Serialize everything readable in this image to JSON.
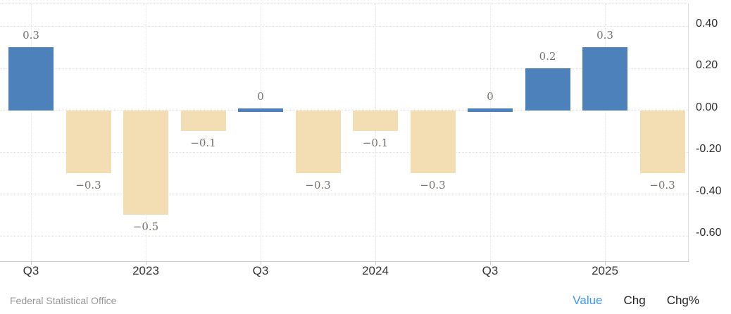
{
  "chart_data": {
    "type": "bar",
    "title": "",
    "series": [
      {
        "name": "Value",
        "values": [
          0.3,
          -0.3,
          -0.5,
          -0.1,
          0,
          -0.3,
          -0.1,
          -0.3,
          0,
          0.2,
          0.3,
          -0.3
        ],
        "value_labels": [
          "0.3",
          "−0.3",
          "−0.5",
          "−0.1",
          "0",
          "−0.3",
          "−0.1",
          "−0.3",
          "0",
          "0.2",
          "0.3",
          "−0.3"
        ]
      }
    ],
    "x_axis": {
      "ticks": [
        {
          "bar_index": 0,
          "label": "Q3"
        },
        {
          "bar_index": 2,
          "label": "2023"
        },
        {
          "bar_index": 4,
          "label": "Q3"
        },
        {
          "bar_index": 6,
          "label": "2024"
        },
        {
          "bar_index": 8,
          "label": "Q3"
        },
        {
          "bar_index": 10,
          "label": "2025"
        }
      ]
    },
    "y_axis": {
      "side": "right",
      "ticks": [
        {
          "value": 0.4,
          "label": "0.40"
        },
        {
          "value": 0.2,
          "label": "0.20"
        },
        {
          "value": 0.0,
          "label": "0.00"
        },
        {
          "value": -0.2,
          "label": "-0.20"
        },
        {
          "value": -0.4,
          "label": "-0.40"
        },
        {
          "value": -0.6,
          "label": "-0.60"
        }
      ],
      "ylim": [
        -0.73,
        0.5
      ]
    },
    "grid": true,
    "legend": false,
    "colors": {
      "positive_bar": "#4d81bc",
      "negative_bar": "#f3ddb2",
      "value_label": "#76716c",
      "active_tab": "#3c96f5"
    }
  },
  "footer": {
    "source": "Federal Statistical Office",
    "tabs": [
      {
        "label": "Value",
        "active": true
      },
      {
        "label": "Chg",
        "active": false
      },
      {
        "label": "Chg%",
        "active": false
      }
    ]
  }
}
